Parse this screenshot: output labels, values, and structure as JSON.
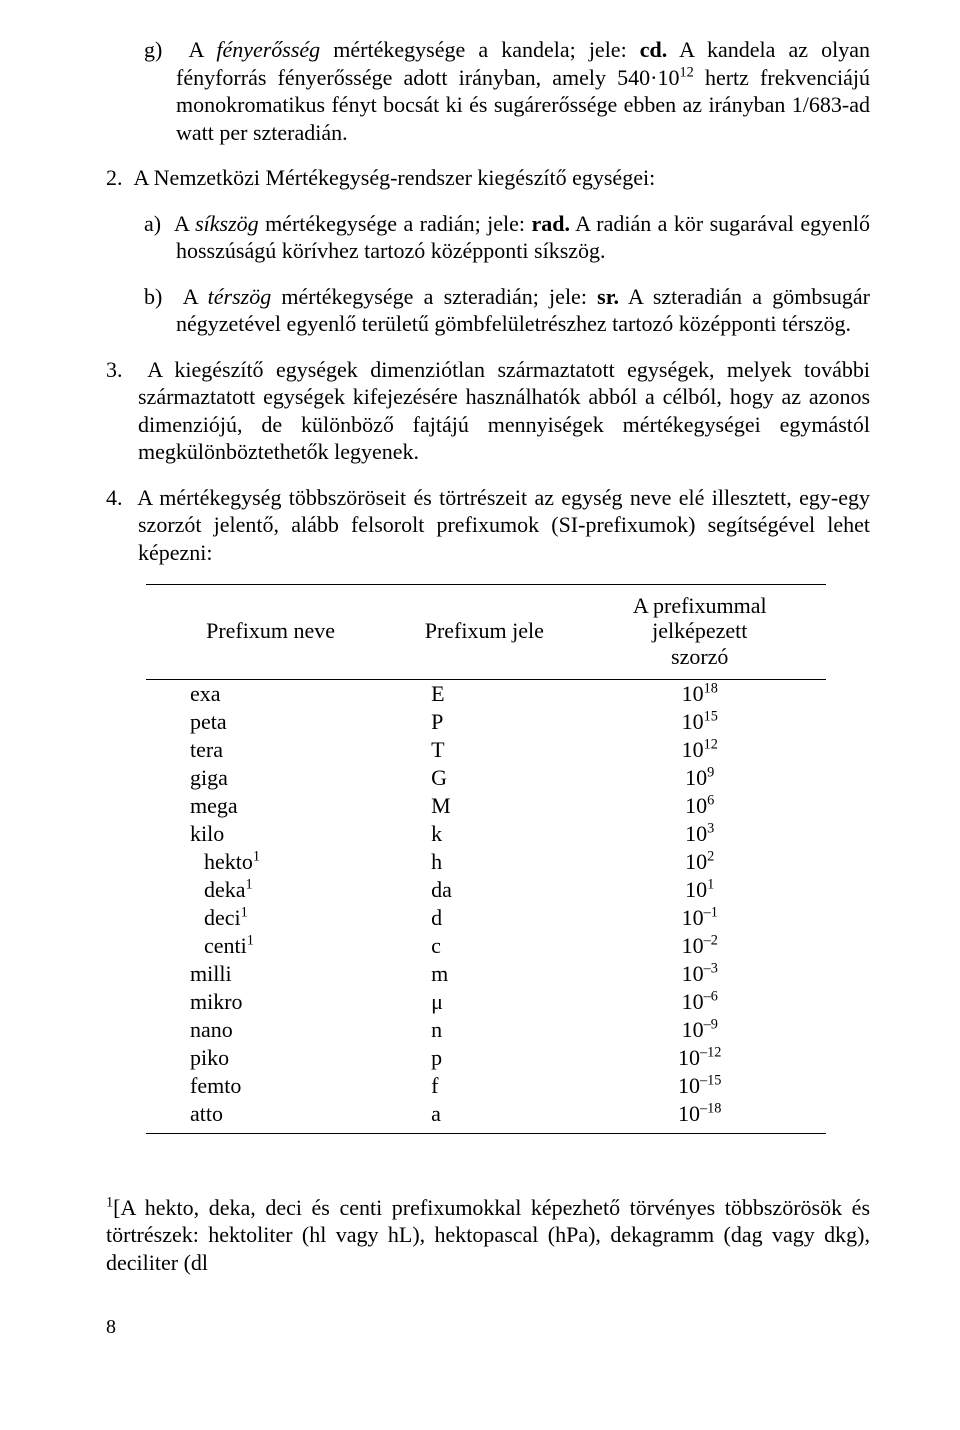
{
  "paragraphs": {
    "g_label": "g)",
    "g_text1": "A ",
    "g_italic1": "fényerősség",
    "g_text2": " mértékegysége a kandela; jele: ",
    "g_bold1": "cd.",
    "g_text3": " A kandela az olyan fényforrás fényerőssége adott irányban, amely 540·10",
    "g_sup1": "12",
    "g_text4": " hertz frekvenciájú monokromatikus fényt bocsát ki és sugárerőssége ebben az irányban 1/683-ad watt per szteradián.",
    "p2_label": "2.",
    "p2_text": "A Nemzetközi Mértékegység-rendszer kiegészítő egységei:",
    "a_label": "a)",
    "a_text1": "A ",
    "a_italic1": "síkszög",
    "a_text2": " mértékegysége a radián; jele: ",
    "a_bold1": "rad.",
    "a_text3": " A radián a kör sugarával egyenlő hosszúságú körívhez tartozó középponti síkszög.",
    "b_label": "b)",
    "b_text1": "A ",
    "b_italic1": "térszög",
    "b_text2": " mértékegysége a szteradián; jele: ",
    "b_bold1": "sr.",
    "b_text3": " A szteradián a gömbsugár négyzetével egyenlő területű gömbfelületrészhez tartozó középponti térszög.",
    "p3_label": "3.",
    "p3_text": "A kiegészítő egységek dimenziótlan származtatott egységek, melyek további származtatott egységek kifejezésére használhatók abból a célból, hogy az azonos dimenziójú, de különböző fajtájú mennyiségek mértékegységei egymástól megkülönböztethetők legyenek.",
    "p4_label": "4.",
    "p4_text": "A mértékegység többszöröseit és törtrészeit az egység neve elé illesztett, egy-egy szorzót jelentő, alább felsorolt prefixumok (SI-prefixumok) segítségével lehet képezni:"
  },
  "table": {
    "header": {
      "col1": "Prefixum neve",
      "col2": "Prefixum jele",
      "col3_line1": "A prefixummal jelképezett",
      "col3_line2": "szorzó"
    },
    "rows": [
      {
        "name": "exa",
        "sym": "E",
        "base": "10",
        "exp": "18",
        "deep": false,
        "note": false
      },
      {
        "name": "peta",
        "sym": "P",
        "base": "10",
        "exp": "15",
        "deep": false,
        "note": false
      },
      {
        "name": "tera",
        "sym": "T",
        "base": "10",
        "exp": "12",
        "deep": false,
        "note": false
      },
      {
        "name": "giga",
        "sym": "G",
        "base": "10",
        "exp": "9",
        "deep": false,
        "note": false
      },
      {
        "name": "mega",
        "sym": "M",
        "base": "10",
        "exp": "6",
        "deep": false,
        "note": false
      },
      {
        "name": "kilo",
        "sym": "k",
        "base": "10",
        "exp": "3",
        "deep": false,
        "note": false
      },
      {
        "name": "hekto",
        "sym": "h",
        "base": "10",
        "exp": "2",
        "deep": true,
        "note": true
      },
      {
        "name": "deka",
        "sym": "da",
        "base": "10",
        "exp": "1",
        "deep": true,
        "note": true
      },
      {
        "name": "deci",
        "sym": "d",
        "base": "10",
        "exp": "–1",
        "deep": true,
        "note": true
      },
      {
        "name": "centi",
        "sym": "c",
        "base": "10",
        "exp": "–2",
        "deep": true,
        "note": true
      },
      {
        "name": "milli",
        "sym": "m",
        "base": "10",
        "exp": "–3",
        "deep": false,
        "note": false
      },
      {
        "name": "mikro",
        "sym": "μ",
        "base": "10",
        "exp": "–6",
        "deep": false,
        "note": false
      },
      {
        "name": "nano",
        "sym": "n",
        "base": "10",
        "exp": "–9",
        "deep": false,
        "note": false
      },
      {
        "name": "piko",
        "sym": "p",
        "base": "10",
        "exp": "–12",
        "deep": false,
        "note": false
      },
      {
        "name": "femto",
        "sym": "f",
        "base": "10",
        "exp": "–15",
        "deep": false,
        "note": false
      },
      {
        "name": "atto",
        "sym": "a",
        "base": "10",
        "exp": "–18",
        "deep": false,
        "note": false
      }
    ]
  },
  "footnote": {
    "marker": "1",
    "text": "[A hekto, deka, deci és centi prefixumokkal képezhető törvényes többszörösök és törtrészek: hektoliter (hl vagy hL), hektopascal (hPa), dekagramm (dag vagy dkg), deciliter (dl"
  },
  "page_number": "8"
}
